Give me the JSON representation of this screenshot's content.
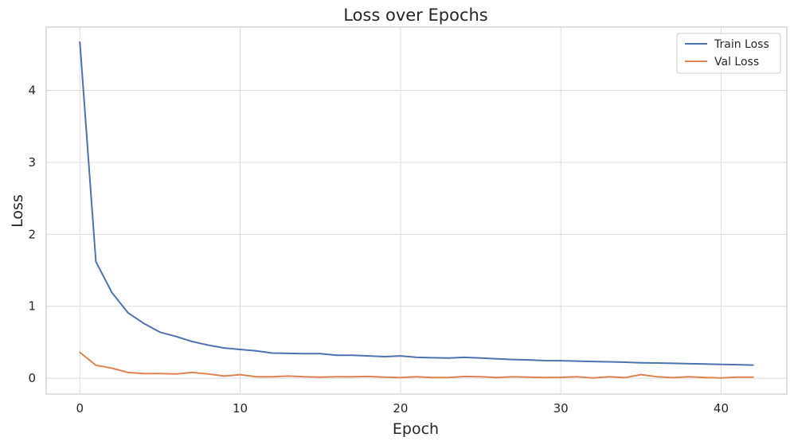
{
  "chart_data": {
    "type": "line",
    "title": "Loss over Epochs",
    "xlabel": "Epoch",
    "ylabel": "Loss",
    "xlim": [
      -2.1,
      44.1
    ],
    "ylim": [
      -0.22,
      4.88
    ],
    "xticks": [
      0,
      10,
      20,
      30,
      40
    ],
    "yticks": [
      0,
      1,
      2,
      3,
      4
    ],
    "grid": true,
    "legend": "top-right",
    "x": [
      0,
      1,
      2,
      3,
      4,
      5,
      6,
      7,
      8,
      9,
      10,
      11,
      12,
      13,
      14,
      15,
      16,
      17,
      18,
      19,
      20,
      21,
      22,
      23,
      24,
      25,
      26,
      27,
      28,
      29,
      30,
      31,
      32,
      33,
      34,
      35,
      36,
      37,
      38,
      39,
      40,
      41,
      42
    ],
    "series": [
      {
        "name": "Train Loss",
        "color": "#4c72b0",
        "values": [
          4.67,
          1.62,
          1.19,
          0.91,
          0.76,
          0.64,
          0.58,
          0.51,
          0.46,
          0.42,
          0.4,
          0.38,
          0.35,
          0.345,
          0.342,
          0.342,
          0.32,
          0.32,
          0.31,
          0.3,
          0.31,
          0.29,
          0.285,
          0.28,
          0.29,
          0.28,
          0.27,
          0.26,
          0.255,
          0.245,
          0.243,
          0.238,
          0.233,
          0.228,
          0.222,
          0.215,
          0.212,
          0.207,
          0.202,
          0.197,
          0.193,
          0.188,
          0.183
        ]
      },
      {
        "name": "Val Loss",
        "color": "#dd8452",
        "values": [
          0.36,
          0.18,
          0.14,
          0.08,
          0.065,
          0.065,
          0.06,
          0.08,
          0.06,
          0.03,
          0.05,
          0.02,
          0.02,
          0.03,
          0.02,
          0.015,
          0.02,
          0.02,
          0.025,
          0.015,
          0.01,
          0.02,
          0.01,
          0.01,
          0.025,
          0.02,
          0.01,
          0.02,
          0.015,
          0.01,
          0.012,
          0.02,
          0.005,
          0.02,
          0.008,
          0.05,
          0.02,
          0.008,
          0.02,
          0.01,
          0.005,
          0.015,
          0.015
        ]
      }
    ]
  }
}
